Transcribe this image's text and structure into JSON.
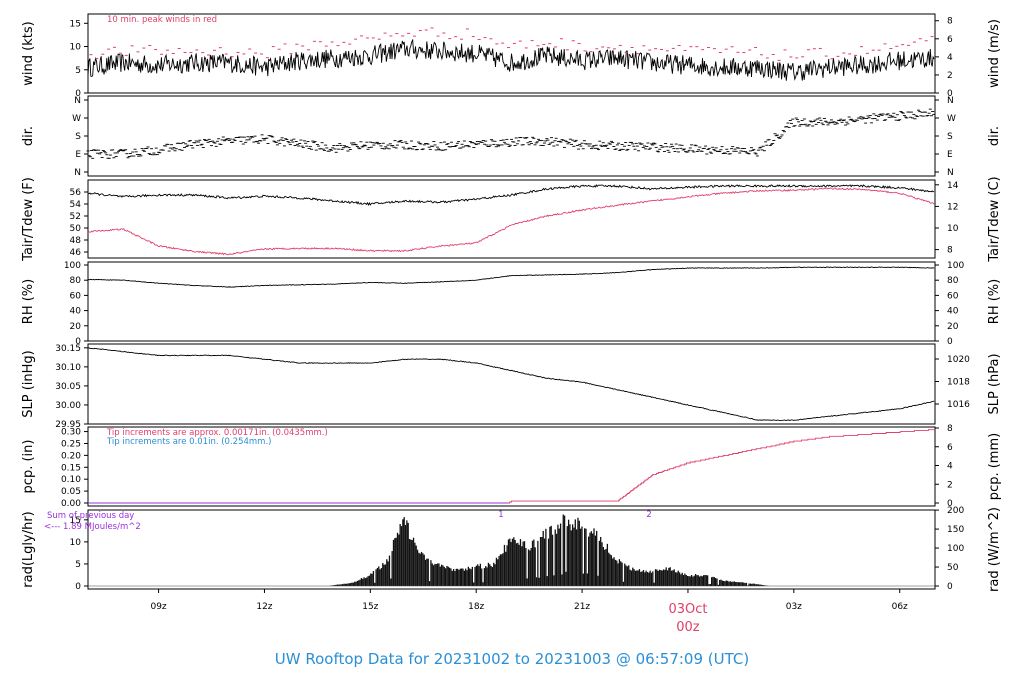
{
  "title": "UW Rooftop Data for 20231002  to  20231003 @ 06:57:09  (UTC)",
  "colors": {
    "title": "#2b8fd6",
    "red": "#e0406a",
    "blue": "#2b8fd6",
    "purple": "#9b30e0",
    "line": "#000000"
  },
  "x_axis": {
    "ticks": [
      {
        "h": 9,
        "label": "09z"
      },
      {
        "h": 12,
        "label": "12z"
      },
      {
        "h": 15,
        "label": "15z"
      },
      {
        "h": 18,
        "label": "18z"
      },
      {
        "h": 21,
        "label": "21z"
      },
      {
        "h": 27,
        "label": "03z"
      },
      {
        "h": 30,
        "label": "06z"
      }
    ],
    "date_label": "03Oct",
    "date_sub": "00z",
    "date_h": 24
  },
  "panels": {
    "wind": {
      "ylabel": "wind (kts)",
      "ylabel_right": "wind (m/s)",
      "ylim": [
        0,
        17
      ],
      "left_ticks": [
        "0",
        "5",
        "10",
        "15"
      ],
      "right_ticks": [
        "0",
        "2",
        "4",
        "6",
        "8"
      ],
      "note": "10 min. peak winds in red"
    },
    "dir": {
      "ylabel": "dir.",
      "ylabel_right": "dir.",
      "left_ticks": [
        "N",
        "E",
        "S",
        "W",
        "N"
      ],
      "right_ticks": [
        "N",
        "E",
        "S",
        "W",
        "N"
      ]
    },
    "temp": {
      "ylabel": "Tair/Tdew (F)",
      "ylabel_right": "Tair/Tdew (C)",
      "ylim": [
        45,
        58
      ],
      "left_ticks": [
        "46",
        "48",
        "50",
        "52",
        "54",
        "56"
      ],
      "right_ticks": [
        "8",
        "10",
        "12",
        "14"
      ]
    },
    "rh": {
      "ylabel": "RH (%)",
      "ylabel_right": "RH (%)",
      "ylim": [
        0,
        100
      ],
      "left_ticks": [
        "0",
        "20",
        "40",
        "60",
        "80",
        "100"
      ],
      "right_ticks": [
        "0",
        "20",
        "40",
        "60",
        "80",
        "100"
      ]
    },
    "slp": {
      "ylabel": "SLP (inHg)",
      "ylabel_right": "SLP (hPa)",
      "ylim": [
        29.95,
        30.16
      ],
      "left_ticks": [
        "29.95",
        "30.00",
        "30.05",
        "30.10",
        "30.15"
      ],
      "right_ticks": [
        "1016",
        "1018",
        "1020"
      ]
    },
    "pcp": {
      "ylabel": "pcp. (in)",
      "ylabel_right": "pcp. (mm)",
      "ylim": [
        0,
        0.315
      ],
      "left_ticks": [
        "0.00",
        "0.05",
        "0.10",
        "0.15",
        "0.20",
        "0.25",
        "0.30"
      ],
      "right_ticks": [
        "0",
        "2",
        "4",
        "6",
        "8"
      ],
      "note_red": "Tip increments are approx. 0.00171in. (0.0435mm.)",
      "note_blue": "Tip increments are 0.01in. (0.254mm.)"
    },
    "rad": {
      "ylabel": "rad(Lgly/hr)",
      "ylabel_right": "rad (W/m^2)",
      "ylim": [
        0,
        17
      ],
      "left_ticks": [
        "0",
        "5",
        "10",
        "15"
      ],
      "right_ticks": [
        "0",
        "50",
        "100",
        "150",
        "200"
      ],
      "note1": "Sum of previous day",
      "note2": "<--- 1.89 MJoules/m^2",
      "markers": [
        "1",
        "2"
      ]
    }
  },
  "chart_data": [
    {
      "type": "line",
      "title": "",
      "ylabel": "wind (kts)",
      "xlabel": "",
      "x_range_hours": [
        7,
        31
      ],
      "ylim": [
        0,
        17
      ],
      "series": [],
      "x": [
        7,
        8,
        9,
        10,
        11,
        12,
        13,
        14,
        15,
        16,
        17,
        18,
        19,
        20,
        21,
        22,
        23,
        24,
        25,
        26,
        27,
        28,
        29,
        30,
        31
      ],
      "values": [
        5.5,
        6.5,
        6.0,
        6.5,
        6.5,
        5.5,
        7,
        7.5,
        8,
        9.5,
        9,
        8.5,
        6.5,
        8,
        7,
        7.5,
        6.5,
        6,
        5.5,
        5.5,
        4.5,
        5.5,
        6,
        7,
        7.5
      ],
      "peak_values": [
        8.5,
        9,
        9,
        9,
        9,
        8.5,
        10,
        11,
        11.5,
        13,
        13,
        12.5,
        10,
        11,
        10,
        10,
        9.5,
        9,
        9,
        8.5,
        8,
        8.5,
        9,
        10,
        11
      ]
    },
    {
      "type": "scatter",
      "title": "",
      "ylabel": "dir.",
      "ylim": [
        "N",
        "E",
        "S",
        "W",
        "N"
      ],
      "x": [
        7,
        8,
        9,
        10,
        11,
        12,
        13,
        14,
        15,
        16,
        17,
        18,
        19,
        20,
        21,
        22,
        23,
        24,
        25,
        26,
        27,
        28,
        29,
        30,
        31
      ],
      "values_deg": [
        90,
        90,
        110,
        140,
        155,
        165,
        140,
        120,
        135,
        135,
        130,
        140,
        150,
        155,
        135,
        130,
        125,
        115,
        110,
        100,
        250,
        250,
        265,
        280,
        295
      ]
    },
    {
      "type": "line",
      "title": "",
      "ylabel": "Tair/Tdew (F)",
      "ylim": [
        45,
        58
      ],
      "x": [
        7,
        8,
        9,
        10,
        11,
        12,
        13,
        14,
        15,
        16,
        17,
        18,
        19,
        20,
        21,
        22,
        23,
        24,
        25,
        26,
        27,
        28,
        29,
        30,
        31
      ],
      "series": [
        {
          "values": [
            55.8,
            55.2,
            55.5,
            55.5,
            55.0,
            55.3,
            55.0,
            54.5,
            54.0,
            54.5,
            54.3,
            54.8,
            55.5,
            56.5,
            57.0,
            57.0,
            56.5,
            56.8,
            57.0,
            57.0,
            57.0,
            57.0,
            57.0,
            56.7,
            56.0
          ]
        },
        {
          "values": [
            49.4,
            49.8,
            47.0,
            46.1,
            45.6,
            46.5,
            46.6,
            46.6,
            46.2,
            46.2,
            47.0,
            47.5,
            50.5,
            52.0,
            53.0,
            53.8,
            54.5,
            55.2,
            55.8,
            56.2,
            56.3,
            56.6,
            56.4,
            55.8,
            54.0
          ]
        }
      ]
    },
    {
      "type": "line",
      "title": "",
      "ylabel": "RH (%)",
      "ylim": [
        0,
        100
      ],
      "x": [
        7,
        8,
        9,
        10,
        11,
        12,
        13,
        14,
        15,
        16,
        17,
        18,
        19,
        20,
        21,
        22,
        23,
        24,
        25,
        26,
        27,
        28,
        29,
        30,
        31
      ],
      "values": [
        81,
        80,
        76,
        73,
        71,
        73,
        74,
        75,
        77,
        76,
        78,
        80,
        86,
        87,
        88,
        90,
        94,
        96,
        96,
        96,
        97,
        97,
        97,
        97,
        96
      ]
    },
    {
      "type": "line",
      "title": "",
      "ylabel": "SLP (inHg)",
      "ylim": [
        29.95,
        30.16
      ],
      "x": [
        7,
        8,
        9,
        10,
        11,
        12,
        13,
        14,
        15,
        16,
        17,
        18,
        19,
        20,
        21,
        22,
        23,
        24,
        25,
        26,
        27,
        28,
        29,
        30,
        31
      ],
      "values": [
        30.15,
        30.14,
        30.13,
        30.13,
        30.13,
        30.12,
        30.11,
        30.11,
        30.11,
        30.12,
        30.12,
        30.11,
        30.09,
        30.07,
        30.06,
        30.04,
        30.02,
        30.0,
        29.98,
        29.96,
        29.96,
        29.97,
        29.98,
        29.99,
        30.01
      ]
    },
    {
      "type": "line",
      "title": "",
      "ylabel": "pcp. (in)",
      "ylim": [
        0,
        0.315
      ],
      "x": [
        7,
        18,
        18.9,
        19,
        21,
        22,
        23,
        24,
        25,
        26,
        27,
        28,
        29,
        30,
        31
      ],
      "values": [
        0,
        0,
        0,
        0.01,
        0.01,
        0.01,
        0.12,
        0.17,
        0.2,
        0.23,
        0.26,
        0.28,
        0.29,
        0.3,
        0.31
      ]
    },
    {
      "type": "bar",
      "title": "",
      "ylabel": "rad(Lgly/hr)",
      "ylim": [
        0,
        17
      ],
      "x": [
        13.8,
        14.5,
        15,
        15.5,
        15.9,
        16.5,
        17,
        17.5,
        18,
        18.5,
        19,
        19.5,
        20,
        20.5,
        21,
        21.5,
        22,
        22.5,
        23,
        23.5,
        24,
        24.5,
        25,
        25.5,
        26,
        26.3
      ],
      "values": [
        0,
        0.8,
        2.5,
        6,
        15.5,
        7,
        4.5,
        3.5,
        4.5,
        5,
        11,
        9,
        12,
        15,
        14,
        11,
        6,
        3.5,
        3.5,
        4,
        2.5,
        2.5,
        1.2,
        0.8,
        0.4,
        0
      ]
    }
  ]
}
